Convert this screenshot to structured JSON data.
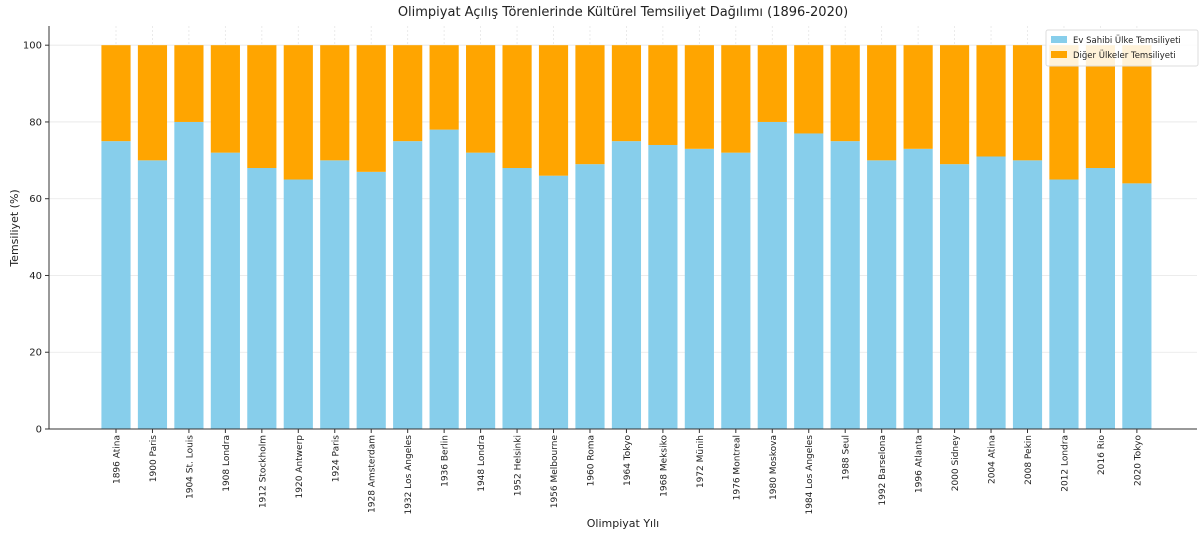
{
  "chart_data": {
    "type": "stacked_bar",
    "title": "Olimpiyat Açılış Törenlerinde Kültürel Temsiliyet Dağılımı (1896-2020)",
    "x_label": "Olimpiyat Yılı",
    "y_label": "Temsiliyet (%)",
    "categories": [
      "1896 Atina",
      "1900 Paris",
      "1904 St. Louis",
      "1908 Londra",
      "1912 Stockholm",
      "1920 Antwerp",
      "1924 Paris",
      "1928 Amsterdam",
      "1932 Los Angeles",
      "1936 Berlin",
      "1948 Londra",
      "1952 Helsinki",
      "1956 Melbourne",
      "1960 Roma",
      "1964 Tokyo",
      "1968 Meksiko",
      "1972 Münih",
      "1976 Montreal",
      "1980 Moskova",
      "1984 Los Angeles",
      "1988 Seul",
      "1992 Barselona",
      "1996 Atlanta",
      "2000 Sidney",
      "2004 Atina",
      "2008 Pekin",
      "2012 Londra",
      "2016 Rio",
      "2020 Tokyo"
    ],
    "series": [
      {
        "name": "Ev Sahibi Ülke Temsiliyeti",
        "color": "#87ceeb",
        "values": [
          75,
          70,
          80,
          72,
          68,
          65,
          70,
          67,
          75,
          78,
          72,
          68,
          66,
          69,
          75,
          74,
          73,
          72,
          80,
          77,
          75,
          70,
          73,
          69,
          71,
          70,
          65,
          68,
          64
        ]
      },
      {
        "name": "Diğer Ülkeler Temsiliyeti",
        "color": "#ffa500",
        "values": [
          25,
          30,
          20,
          28,
          32,
          35,
          30,
          33,
          25,
          22,
          28,
          32,
          34,
          31,
          25,
          26,
          27,
          28,
          20,
          23,
          25,
          30,
          27,
          31,
          29,
          30,
          35,
          32,
          36
        ]
      }
    ],
    "ylim": [
      0,
      105
    ],
    "yticks": [
      0,
      20,
      40,
      60,
      80,
      100
    ],
    "grid": true,
    "legend": "upper right"
  }
}
